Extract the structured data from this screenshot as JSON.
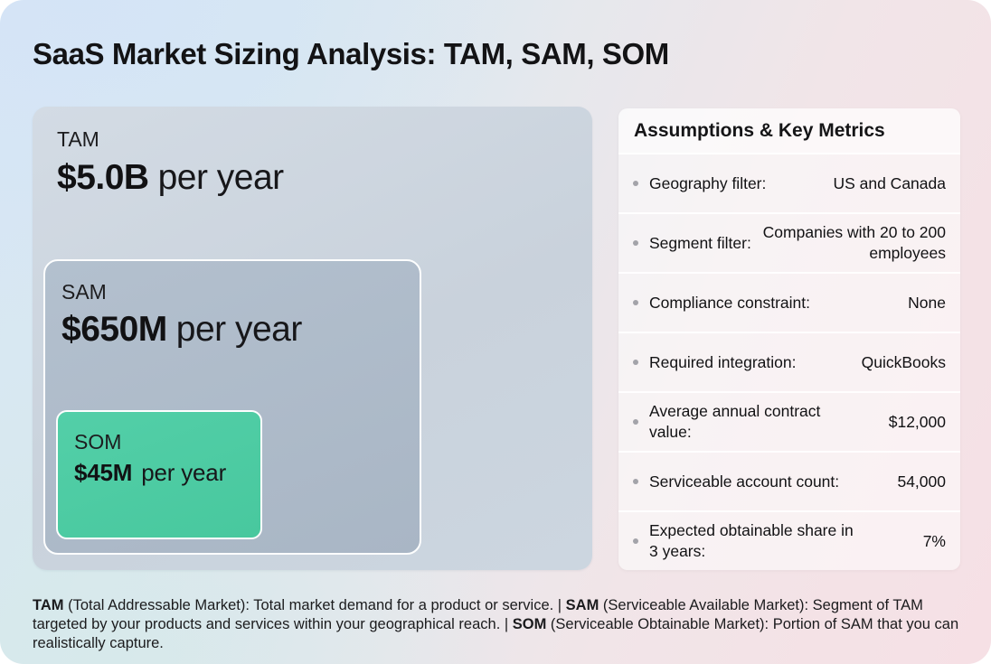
{
  "page": {
    "title": "SaaS Market Sizing Analysis: TAM, SAM, SOM"
  },
  "boxes": {
    "tam": {
      "label": "TAM",
      "value": "$5.0B",
      "suffix": "per year",
      "color": "#ccd5de"
    },
    "sam": {
      "label": "SAM",
      "value": "$650M",
      "suffix": "per year",
      "color": "#aebbc9"
    },
    "som": {
      "label": "SOM",
      "value": "$45M",
      "suffix": "per year",
      "color": "#4fcca4"
    }
  },
  "panel": {
    "title": "Assumptions & Key Metrics",
    "bullet_color": "#a3a3a9",
    "rows": [
      {
        "label": "Geography filter:",
        "value": "US and Canada"
      },
      {
        "label": "Segment filter:",
        "value": "Companies with 20 to 200 employees"
      },
      {
        "label": "Compliance constraint:",
        "value": "None"
      },
      {
        "label": "Required integration:",
        "value": "QuickBooks"
      },
      {
        "label": "Average annual contract value:",
        "value": "$12,000"
      },
      {
        "label": "Serviceable account count:",
        "value": "54,000"
      },
      {
        "label": "Expected obtainable share in 3 years:",
        "value": "7%"
      }
    ]
  },
  "footer": {
    "segments": [
      {
        "bold": "TAM",
        "text": " (Total Addressable Market): Total market demand for a product or service. | "
      },
      {
        "bold": "SAM",
        "text": " (Serviceable Available Market): Segment of TAM targeted by your products and services within your geographical reach. | "
      },
      {
        "bold": "SOM",
        "text": " (Serviceable Obtainable Market): Portion of SAM that you can realistically capture."
      }
    ]
  }
}
